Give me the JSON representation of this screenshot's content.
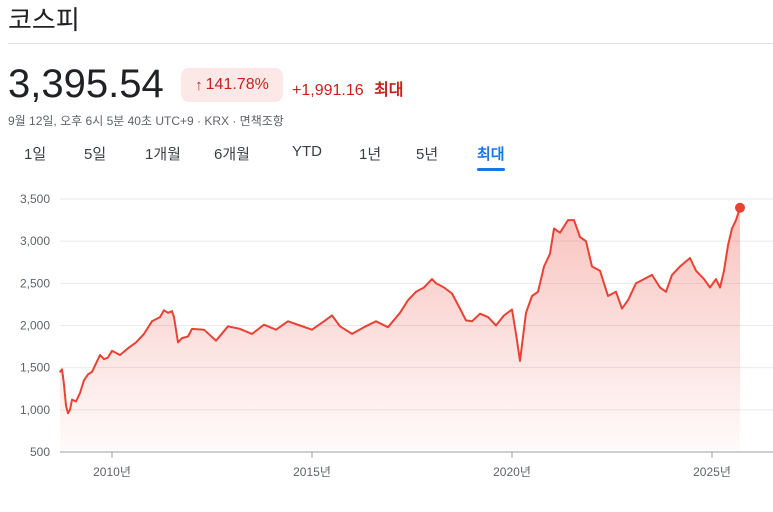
{
  "header": {
    "title": "코스피"
  },
  "quote": {
    "price": "3,395.54",
    "change_percent": "141.78%",
    "change_value": "+1,991.16",
    "period_label": "최대",
    "meta": "9월 12일, 오후 6시 5분 40초 UTC+9 · KRX · 면책조항"
  },
  "tabs": [
    {
      "label": "1일",
      "active": false
    },
    {
      "label": "5일",
      "active": false
    },
    {
      "label": "1개월",
      "active": false
    },
    {
      "label": "6개월",
      "active": false
    },
    {
      "label": "YTD",
      "active": false
    },
    {
      "label": "1년",
      "active": false
    },
    {
      "label": "5년",
      "active": false
    },
    {
      "label": "최대",
      "active": true
    }
  ],
  "colors": {
    "line": "#e94235",
    "positive_text": "#c5221f",
    "positive_bg": "#fce8e6",
    "active_tab": "#1a73e8"
  },
  "compare_label": "",
  "chart_data": {
    "type": "area",
    "title": "",
    "xlabel": "",
    "ylabel": "",
    "ylim": [
      500,
      3500
    ],
    "xlim": [
      2008.7,
      2025.75
    ],
    "yticks": [
      500,
      1000,
      1500,
      2000,
      2500,
      3000,
      3500
    ],
    "ytick_labels": [
      "500",
      "1,000",
      "1,500",
      "2,000",
      "2,500",
      "3,000",
      "3,500"
    ],
    "xticks": [
      2010,
      2015,
      2020,
      2025
    ],
    "xtick_labels": [
      "2010년",
      "2015년",
      "2020년",
      "2025년"
    ],
    "grid": true,
    "series": [
      {
        "x": [
          2008.7,
          2008.75,
          2008.8,
          2008.85,
          2008.9,
          2008.95,
          2009.0,
          2009.1,
          2009.2,
          2009.3,
          2009.4,
          2009.5,
          2009.6,
          2009.7,
          2009.8,
          2009.9,
          2010.0,
          2010.2,
          2010.4,
          2010.6,
          2010.8,
          2011.0,
          2011.2,
          2011.3,
          2011.4,
          2011.5,
          2011.55,
          2011.65,
          2011.75,
          2011.9,
          2012.0,
          2012.3,
          2012.6,
          2012.9,
          2013.2,
          2013.5,
          2013.8,
          2014.1,
          2014.4,
          2014.7,
          2015.0,
          2015.3,
          2015.5,
          2015.7,
          2016.0,
          2016.3,
          2016.6,
          2016.9,
          2017.2,
          2017.4,
          2017.6,
          2017.8,
          2018.0,
          2018.1,
          2018.3,
          2018.5,
          2018.7,
          2018.85,
          2019.0,
          2019.2,
          2019.4,
          2019.6,
          2019.8,
          2020.0,
          2020.1,
          2020.2,
          2020.35,
          2020.5,
          2020.65,
          2020.8,
          2020.95,
          2021.05,
          2021.2,
          2021.4,
          2021.55,
          2021.7,
          2021.85,
          2022.0,
          2022.2,
          2022.4,
          2022.6,
          2022.75,
          2022.9,
          2023.1,
          2023.3,
          2023.5,
          2023.7,
          2023.85,
          2024.0,
          2024.2,
          2024.45,
          2024.6,
          2024.8,
          2024.95,
          2025.1,
          2025.2,
          2025.3,
          2025.4,
          2025.5,
          2025.6,
          2025.7
        ],
        "values": [
          1450,
          1480,
          1300,
          1050,
          960,
          1000,
          1120,
          1100,
          1200,
          1350,
          1420,
          1450,
          1550,
          1650,
          1600,
          1620,
          1700,
          1650,
          1730,
          1800,
          1900,
          2050,
          2100,
          2180,
          2150,
          2170,
          2100,
          1800,
          1850,
          1870,
          1960,
          1950,
          1820,
          1990,
          1960,
          1900,
          2010,
          1950,
          2050,
          2000,
          1950,
          2050,
          2120,
          1990,
          1900,
          1980,
          2050,
          1980,
          2150,
          2300,
          2400,
          2450,
          2550,
          2500,
          2450,
          2380,
          2200,
          2060,
          2050,
          2140,
          2100,
          2000,
          2120,
          2190,
          1900,
          1580,
          2150,
          2350,
          2400,
          2700,
          2850,
          3150,
          3100,
          3250,
          3250,
          3050,
          3000,
          2700,
          2650,
          2350,
          2400,
          2200,
          2300,
          2500,
          2550,
          2600,
          2450,
          2400,
          2600,
          2700,
          2800,
          2650,
          2550,
          2450,
          2550,
          2450,
          2650,
          2950,
          3150,
          3250,
          3395
        ]
      }
    ],
    "last_point": {
      "x": 2025.7,
      "y": 3395.54
    }
  }
}
